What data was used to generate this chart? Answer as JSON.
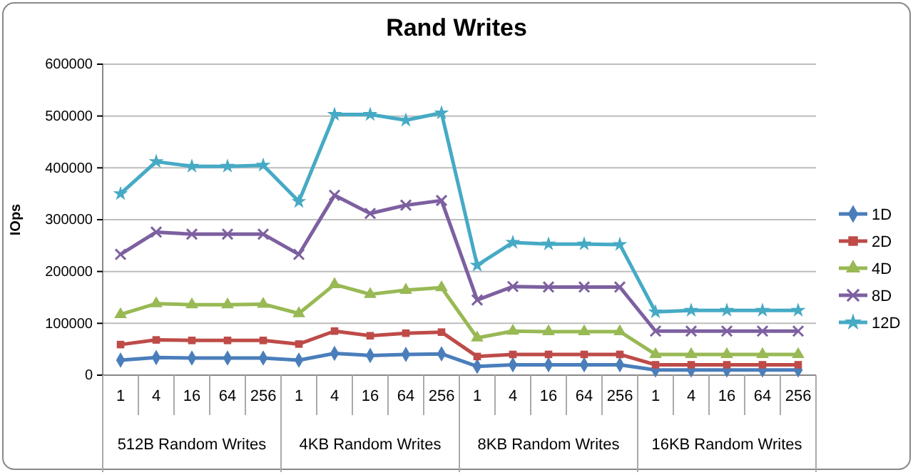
{
  "chart_data": {
    "type": "line",
    "title": "Rand Writes",
    "ylabel": "IOps",
    "categories": [
      "1",
      "4",
      "16",
      "64",
      "256",
      "1",
      "4",
      "16",
      "64",
      "256",
      "1",
      "4",
      "16",
      "64",
      "256",
      "1",
      "4",
      "16",
      "64",
      "256"
    ],
    "annotations": [
      "512B Random Writes",
      "4KB Random Writes",
      "8KB Random Writes",
      "16KB Random Writes"
    ],
    "ylim": [
      0,
      600000
    ],
    "yticks": [
      0,
      100000,
      200000,
      300000,
      400000,
      500000,
      600000
    ],
    "grid": "y",
    "legend": "right",
    "series": [
      {
        "name": "1D",
        "color": "#4a7ebb",
        "marker": "diamond",
        "values": [
          29000,
          34000,
          33000,
          33000,
          33000,
          29000,
          42000,
          38000,
          40000,
          41000,
          17000,
          20000,
          20000,
          20000,
          20000,
          10000,
          10000,
          10000,
          10000,
          10000
        ]
      },
      {
        "name": "2D",
        "color": "#be4b48",
        "marker": "square",
        "values": [
          59000,
          68000,
          67000,
          67000,
          67000,
          60000,
          85000,
          76000,
          81000,
          83000,
          36000,
          40000,
          40000,
          40000,
          40000,
          20000,
          20000,
          20000,
          20000,
          20000
        ]
      },
      {
        "name": "4D",
        "color": "#98b954",
        "marker": "triangle",
        "values": [
          117000,
          138000,
          136000,
          136000,
          137000,
          119000,
          175000,
          156000,
          164000,
          169000,
          72000,
          85000,
          84000,
          84000,
          84000,
          40000,
          40000,
          40000,
          40000,
          40000
        ]
      },
      {
        "name": "8D",
        "color": "#7d60a0",
        "marker": "cross",
        "values": [
          233000,
          276000,
          272000,
          272000,
          272000,
          233000,
          347000,
          312000,
          328000,
          337000,
          145000,
          171000,
          170000,
          170000,
          170000,
          85000,
          85000,
          85000,
          85000,
          85000
        ]
      },
      {
        "name": "12D",
        "color": "#46aac5",
        "marker": "star",
        "values": [
          350000,
          412000,
          403000,
          403000,
          405000,
          335000,
          503000,
          503000,
          492000,
          506000,
          212000,
          256000,
          253000,
          253000,
          252000,
          122000,
          125000,
          125000,
          125000,
          125000
        ]
      }
    ]
  }
}
